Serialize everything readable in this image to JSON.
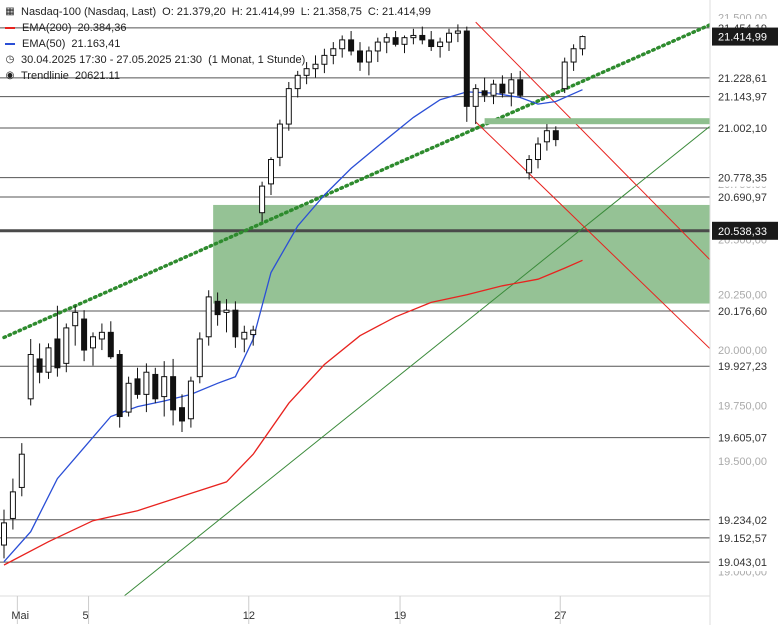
{
  "header": {
    "title": "Nasdaq-100 (Nasdaq, Last)",
    "ohlc": {
      "open": "O: 21.379,20",
      "high": "H: 21.414,99",
      "low": "L: 21.358,75",
      "close": "C: 21.414,99"
    },
    "ema200": {
      "label": "EMA(200)",
      "value": "20.384,36",
      "color": "#e8231f"
    },
    "ema50": {
      "label": "EMA(50)",
      "value": "21.163,41",
      "color": "#2b4fd6"
    },
    "period": "30.04.2025 17:30 - 27.05.2025 21:30",
    "resolution": "(1 Monat, 1 Stunde)",
    "trendline": {
      "label": "Trendlinie",
      "value": "20621.11"
    }
  },
  "colors": {
    "candle": "#111111",
    "ema200": "#e8231f",
    "ema50": "#2b4fd6",
    "trend_dotted": "#2e8b2e",
    "trend_green": "#3a8a3a",
    "channel": "#e8231f",
    "zone": "#8fbf8f",
    "level": "#555555",
    "badge": "#1a1a1a"
  },
  "chart_data": {
    "type": "candlestick",
    "y_range": [
      18890,
      21580
    ],
    "y_ticks": [
      "21.500,00",
      "21.250,00",
      "21.000,00",
      "20.750,00",
      "20.500,00",
      "20.250,00",
      "20.000,00",
      "19.750,00",
      "19.500,00",
      "19.250,00",
      "19.000,00"
    ],
    "y_tick_values": [
      21500,
      21250,
      21000,
      20750,
      20500,
      20250,
      20000,
      19750,
      19500,
      19250,
      19000
    ],
    "x_labels": [
      "Mai",
      "5",
      "12",
      "19",
      "27"
    ],
    "x_label_positions": [
      1.5,
      9.5,
      27.5,
      44.5,
      62.5
    ],
    "x_count": 80,
    "horizontal_levels": [
      {
        "value": 21454.19,
        "label": "21.454,19",
        "badge": false
      },
      {
        "value": 21228.61,
        "label": "21.228,61",
        "badge": false
      },
      {
        "value": 21143.97,
        "label": "21.143,97",
        "badge": false
      },
      {
        "value": 21002.1,
        "label": "21.002,10",
        "badge": false
      },
      {
        "value": 20778.35,
        "label": "20.778,35",
        "badge": false
      },
      {
        "value": 20690.97,
        "label": "20.690,97",
        "badge": false
      },
      {
        "value": 20538.33,
        "label": "20.538,33",
        "badge": true
      },
      {
        "value": 20176.6,
        "label": "20.176,60",
        "badge": false
      },
      {
        "value": 19927.23,
        "label": "19.927,23",
        "badge": false
      },
      {
        "value": 19605.07,
        "label": "19.605,07",
        "badge": false
      },
      {
        "value": 19234.02,
        "label": "19.234,02",
        "badge": false
      },
      {
        "value": 19152.57,
        "label": "19.152,57",
        "badge": false
      },
      {
        "value": 19043.01,
        "label": "19.043,01",
        "badge": false
      }
    ],
    "last_price": {
      "value": 21414.99,
      "label": "21.414,99"
    },
    "zone": {
      "from": 20210,
      "to": 20655,
      "x_start": 23.5,
      "x_end": 80
    },
    "dotted_trendline": {
      "x0": 0,
      "y0": 20057,
      "x1": 80,
      "y1": 21480
    },
    "green_trendline": {
      "x0": 13.5,
      "y0": 18890,
      "x1": 80,
      "y1": 21032
    },
    "channel_upper": {
      "x0": 53,
      "y0": 21480,
      "x1": 80,
      "y1": 20380
    },
    "channel_lower": {
      "x0": 53,
      "y0": 21030,
      "x1": 80,
      "y1": 19980
    },
    "green_bar": {
      "value": 21033,
      "x_start": 54,
      "x_end": 80
    },
    "ema200": [
      [
        0,
        19030
      ],
      [
        5,
        19135
      ],
      [
        10,
        19230
      ],
      [
        15,
        19275
      ],
      [
        20,
        19340
      ],
      [
        25,
        19405
      ],
      [
        28,
        19530
      ],
      [
        32,
        19760
      ],
      [
        36,
        19935
      ],
      [
        40,
        20065
      ],
      [
        44,
        20150
      ],
      [
        48,
        20215
      ],
      [
        52,
        20250
      ],
      [
        56,
        20290
      ],
      [
        60,
        20320
      ],
      [
        63,
        20370
      ],
      [
        65,
        20405
      ]
    ],
    "ema50": [
      [
        0,
        19045
      ],
      [
        3,
        19180
      ],
      [
        6,
        19420
      ],
      [
        9,
        19560
      ],
      [
        12,
        19700
      ],
      [
        15,
        19745
      ],
      [
        18,
        19770
      ],
      [
        21,
        19800
      ],
      [
        24,
        19850
      ],
      [
        26,
        19880
      ],
      [
        28,
        20050
      ],
      [
        30,
        20350
      ],
      [
        33,
        20560
      ],
      [
        36,
        20700
      ],
      [
        39,
        20820
      ],
      [
        42,
        20920
      ],
      [
        46,
        21050
      ],
      [
        49,
        21130
      ],
      [
        52,
        21165
      ],
      [
        55,
        21160
      ],
      [
        58,
        21140
      ],
      [
        60,
        21110
      ],
      [
        62,
        21122
      ],
      [
        65,
        21175
      ]
    ],
    "candles": [
      [
        0,
        19120,
        19280,
        19060,
        19220
      ],
      [
        1,
        19240,
        19420,
        19190,
        19360
      ],
      [
        2,
        19380,
        19580,
        19340,
        19530
      ],
      [
        3,
        19780,
        20050,
        19750,
        19980
      ],
      [
        4,
        19960,
        20030,
        19850,
        19900
      ],
      [
        5,
        19900,
        20030,
        19870,
        20010
      ],
      [
        6,
        20050,
        20200,
        19880,
        19920
      ],
      [
        7,
        19940,
        20120,
        19900,
        20100
      ],
      [
        8,
        20110,
        20200,
        20020,
        20170
      ],
      [
        9,
        20140,
        20180,
        19950,
        20000
      ],
      [
        10,
        20010,
        20080,
        19930,
        20060
      ],
      [
        11,
        20050,
        20120,
        20000,
        20080
      ],
      [
        12,
        20080,
        20130,
        19960,
        19970
      ],
      [
        13,
        19980,
        20000,
        19650,
        19700
      ],
      [
        14,
        19720,
        19880,
        19700,
        19850
      ],
      [
        15,
        19870,
        19920,
        19780,
        19800
      ],
      [
        16,
        19800,
        19940,
        19720,
        19900
      ],
      [
        17,
        19890,
        19920,
        19760,
        19780
      ],
      [
        18,
        19790,
        19950,
        19700,
        19880
      ],
      [
        19,
        19880,
        19960,
        19660,
        19730
      ],
      [
        20,
        19740,
        19800,
        19630,
        19680
      ],
      [
        21,
        19690,
        19880,
        19650,
        19860
      ],
      [
        22,
        19880,
        20080,
        19850,
        20050
      ],
      [
        23,
        20060,
        20270,
        20020,
        20240
      ],
      [
        24,
        20220,
        20260,
        20110,
        20160
      ],
      [
        25,
        20170,
        20230,
        20080,
        20180
      ],
      [
        26,
        20180,
        20220,
        20010,
        20060
      ],
      [
        27,
        20050,
        20110,
        19990,
        20080
      ],
      [
        28,
        20070,
        20110,
        20020,
        20090
      ],
      [
        29,
        20620,
        20760,
        20580,
        20740
      ],
      [
        30,
        20750,
        20870,
        20700,
        20860
      ],
      [
        31,
        20870,
        21040,
        20830,
        21020
      ],
      [
        32,
        21020,
        21210,
        20990,
        21180
      ],
      [
        33,
        21180,
        21260,
        21140,
        21240
      ],
      [
        34,
        21240,
        21300,
        21200,
        21270
      ],
      [
        35,
        21270,
        21330,
        21230,
        21290
      ],
      [
        36,
        21290,
        21360,
        21250,
        21330
      ],
      [
        37,
        21330,
        21390,
        21290,
        21360
      ],
      [
        38,
        21360,
        21420,
        21320,
        21400
      ],
      [
        39,
        21400,
        21440,
        21330,
        21350
      ],
      [
        40,
        21350,
        21390,
        21260,
        21300
      ],
      [
        41,
        21300,
        21370,
        21240,
        21350
      ],
      [
        42,
        21350,
        21410,
        21300,
        21390
      ],
      [
        43,
        21390,
        21430,
        21340,
        21410
      ],
      [
        44,
        21410,
        21440,
        21370,
        21380
      ],
      [
        45,
        21380,
        21420,
        21340,
        21410
      ],
      [
        46,
        21410,
        21450,
        21380,
        21420
      ],
      [
        47,
        21420,
        21460,
        21380,
        21400
      ],
      [
        48,
        21400,
        21440,
        21350,
        21370
      ],
      [
        49,
        21370,
        21410,
        21320,
        21390
      ],
      [
        50,
        21390,
        21450,
        21350,
        21430
      ],
      [
        51,
        21430,
        21470,
        21390,
        21440
      ],
      [
        52,
        21440,
        21460,
        21030,
        21100
      ],
      [
        53,
        21100,
        21200,
        21020,
        21180
      ],
      [
        54,
        21170,
        21230,
        21120,
        21150
      ],
      [
        55,
        21150,
        21220,
        21110,
        21200
      ],
      [
        56,
        21200,
        21240,
        21140,
        21160
      ],
      [
        57,
        21160,
        21250,
        21100,
        21220
      ],
      [
        58,
        21220,
        21260,
        21140,
        21150
      ],
      [
        59,
        20800,
        20880,
        20770,
        20860
      ],
      [
        60,
        20860,
        20960,
        20820,
        20930
      ],
      [
        61,
        20940,
        21020,
        20900,
        20990
      ],
      [
        62,
        20990,
        21010,
        20920,
        20950
      ],
      [
        63,
        21180,
        21320,
        21160,
        21300
      ],
      [
        64,
        21300,
        21380,
        21260,
        21360
      ],
      [
        65,
        21360,
        21420,
        21330,
        21415
      ]
    ]
  }
}
